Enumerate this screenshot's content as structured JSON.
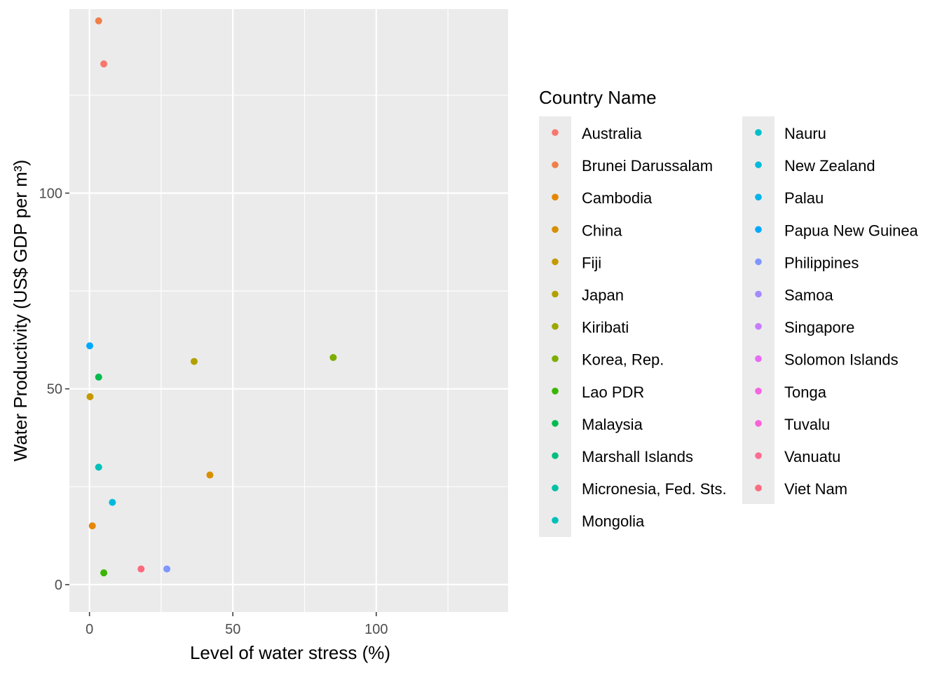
{
  "chart_data": {
    "type": "scatter",
    "title": "",
    "xlabel": "Level of water stress (%)",
    "ylabel": "Water Productivity (US$ GDP per m³)",
    "xlim": [
      -7,
      146
    ],
    "ylim": [
      -7,
      147
    ],
    "x_ticks": [
      0,
      50,
      100
    ],
    "y_ticks": [
      0,
      50,
      100
    ],
    "grid": true,
    "legend_title": "Country Name",
    "legend_placement": "right",
    "series": [
      {
        "name": "Australia",
        "color": "#F8766D",
        "x": null,
        "y": null
      },
      {
        "name": "Brunei Darussalam",
        "color": "#EF7F49",
        "x": 3.2,
        "y": 144
      },
      {
        "name": "Cambodia",
        "color": "#E58700",
        "x": 1.0,
        "y": 15
      },
      {
        "name": "China",
        "color": "#D79000",
        "x": 42.0,
        "y": 28
      },
      {
        "name": "Fiji",
        "color": "#C59900",
        "x": 0.2,
        "y": 48
      },
      {
        "name": "Japan",
        "color": "#B3A000",
        "x": 36.5,
        "y": 57
      },
      {
        "name": "Kiribati",
        "color": "#9DA700",
        "x": null,
        "y": null
      },
      {
        "name": "Korea, Rep.",
        "color": "#7CAE00",
        "x": 85.0,
        "y": 58
      },
      {
        "name": "Lao PDR",
        "color": "#39B600",
        "x": 5.0,
        "y": 3
      },
      {
        "name": "Malaysia",
        "color": "#00BB4E",
        "x": 3.2,
        "y": 53
      },
      {
        "name": "Marshall Islands",
        "color": "#00BF7D",
        "x": null,
        "y": null
      },
      {
        "name": "Micronesia, Fed. Sts.",
        "color": "#00C1A3",
        "x": null,
        "y": null
      },
      {
        "name": "Mongolia",
        "color": "#00C0BA",
        "x": 3.2,
        "y": 30
      },
      {
        "name": "Nauru",
        "color": "#00BECC",
        "x": null,
        "y": null
      },
      {
        "name": "New Zealand",
        "color": "#00BBDB",
        "x": 8.0,
        "y": 21
      },
      {
        "name": "Palau",
        "color": "#00B5EA",
        "x": null,
        "y": null
      },
      {
        "name": "Papua New Guinea",
        "color": "#00A9FF",
        "x": 0.1,
        "y": 61
      },
      {
        "name": "Philippines",
        "color": "#7F96FF",
        "x": 27.0,
        "y": 4
      },
      {
        "name": "Samoa",
        "color": "#A58AFF",
        "x": null,
        "y": null
      },
      {
        "name": "Singapore",
        "color": "#C77CFF",
        "x": null,
        "y": null
      },
      {
        "name": "Solomon Islands",
        "color": "#E76BF3",
        "x": null,
        "y": null
      },
      {
        "name": "Tonga",
        "color": "#F564E3",
        "x": null,
        "y": null
      },
      {
        "name": "Tuvalu",
        "color": "#FB61D7",
        "x": null,
        "y": null
      },
      {
        "name": "Vanuatu",
        "color": "#FF6C91",
        "x": null,
        "y": null
      },
      {
        "name": "Viet Nam",
        "color": "#FD6A7E",
        "x": 18.0,
        "y": 4
      }
    ],
    "extra_points": [
      {
        "color": "#F8766D",
        "x": 5.0,
        "y": 133
      }
    ]
  }
}
